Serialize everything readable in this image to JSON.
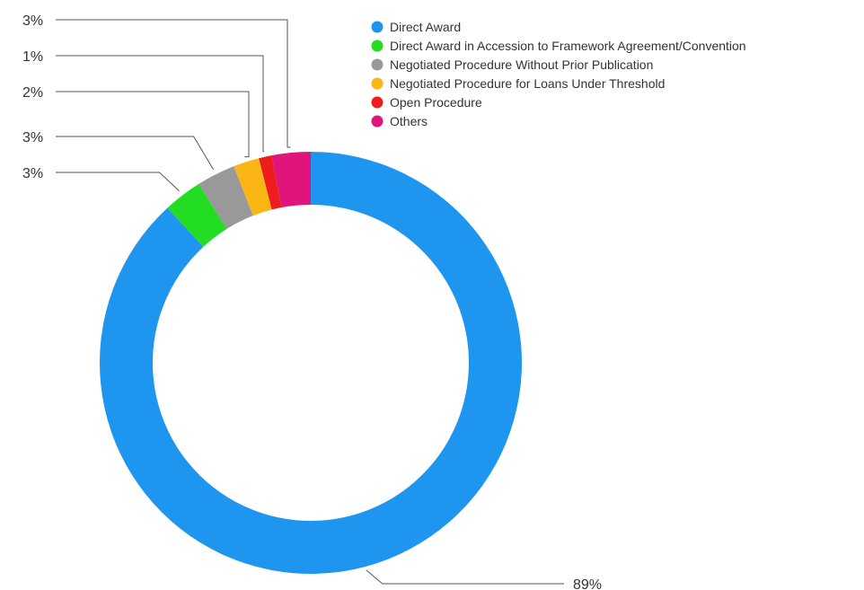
{
  "chart_data": {
    "type": "pie",
    "donut": true,
    "legend_position": "top-right",
    "series": [
      {
        "name": "Direct Award",
        "value": 89,
        "label": "89%",
        "color": "#1e96f0"
      },
      {
        "name": "Direct Award in Accession to Framework Agreement/Convention",
        "value": 3,
        "label": "3%",
        "color": "#22dd22"
      },
      {
        "name": "Negotiated Procedure Without Prior Publication",
        "value": 3,
        "label": "3%",
        "color": "#999999"
      },
      {
        "name": "Negotiated Procedure for Loans Under Threshold",
        "value": 2,
        "label": "2%",
        "color": "#fbb514"
      },
      {
        "name": "Open Procedure",
        "value": 1,
        "label": "1%",
        "color": "#ee1c1c"
      },
      {
        "name": "Others",
        "value": 3,
        "label": "3%",
        "color": "#e0157c"
      }
    ]
  }
}
